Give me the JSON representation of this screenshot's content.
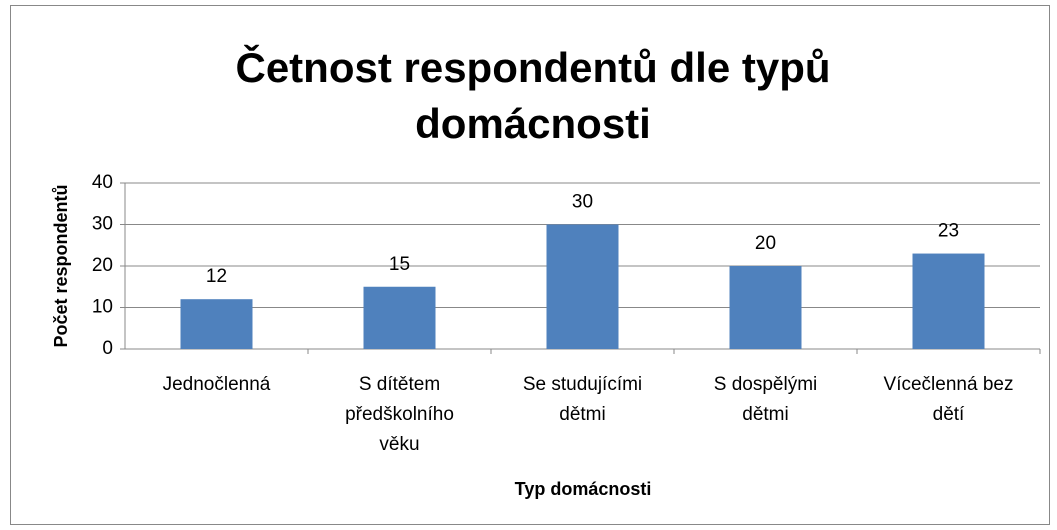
{
  "chart_data": {
    "type": "bar",
    "title": "Četnost respondentů dle typů domácnosti",
    "x_label": "Typ domácnosti",
    "y_label": "Počet respondentů",
    "categories": [
      "Jednočlenná",
      "S dítětem předškolního věku",
      "Se studujícími dětmi",
      "S dospělými dětmi",
      "Vícečlenná bez dětí"
    ],
    "values": [
      12,
      15,
      30,
      20,
      23
    ],
    "color": "#4f81bd",
    "ylim": [
      0,
      40
    ],
    "yticks": [
      0,
      10,
      20,
      30,
      40
    ],
    "grid": true
  }
}
